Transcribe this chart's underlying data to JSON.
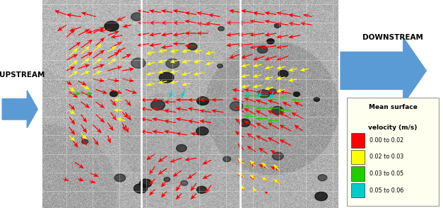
{
  "upstream_label": "UPSTREAM",
  "downstream_label": "DOWNSTREAM",
  "legend_items": [
    {
      "label": "0.00 to 0.02",
      "color": "#ff0000"
    },
    {
      "label": "0.02 to 0.03",
      "color": "#ffff00"
    },
    {
      "label": "0.03 to 0.05",
      "color": "#22cc00"
    },
    {
      "label": "0.05 to 0.06",
      "color": "#00cccc"
    }
  ],
  "legend_bg": "#fffff0",
  "arrow_color": "#5b9bd5",
  "fig_width": 6.27,
  "fig_height": 2.94,
  "dpi": 100,
  "panel_dividers": [
    0.333,
    0.667
  ],
  "red_arrows": [
    [
      0.08,
      0.93,
      -0.04,
      0.02
    ],
    [
      0.13,
      0.92,
      -0.05,
      0.01
    ],
    [
      0.18,
      0.92,
      -0.05,
      0.02
    ],
    [
      0.08,
      0.88,
      -0.03,
      -0.03
    ],
    [
      0.13,
      0.87,
      -0.04,
      -0.02
    ],
    [
      0.19,
      0.86,
      -0.04,
      -0.02
    ],
    [
      0.23,
      0.86,
      -0.04,
      -0.01
    ],
    [
      0.08,
      0.82,
      0.03,
      0.04
    ],
    [
      0.12,
      0.83,
      0.04,
      0.03
    ],
    [
      0.17,
      0.84,
      0.04,
      0.03
    ],
    [
      0.22,
      0.83,
      0.04,
      0.02
    ],
    [
      0.27,
      0.83,
      -0.04,
      -0.01
    ],
    [
      0.09,
      0.76,
      0.04,
      0.04
    ],
    [
      0.13,
      0.77,
      0.04,
      0.04
    ],
    [
      0.18,
      0.78,
      0.03,
      0.04
    ],
    [
      0.23,
      0.77,
      0.04,
      0.03
    ],
    [
      0.28,
      0.77,
      -0.03,
      -0.02
    ],
    [
      0.08,
      0.71,
      0.04,
      0.03
    ],
    [
      0.13,
      0.72,
      0.04,
      0.03
    ],
    [
      0.17,
      0.72,
      0.04,
      0.04
    ],
    [
      0.22,
      0.72,
      0.04,
      0.03
    ],
    [
      0.27,
      0.72,
      0.03,
      0.02
    ],
    [
      0.08,
      0.66,
      0.03,
      0.02
    ],
    [
      0.12,
      0.67,
      0.04,
      0.02
    ],
    [
      0.17,
      0.67,
      0.04,
      0.02
    ],
    [
      0.22,
      0.66,
      0.05,
      0.02
    ],
    [
      0.27,
      0.66,
      0.04,
      0.01
    ],
    [
      0.08,
      0.61,
      0.02,
      -0.02
    ],
    [
      0.12,
      0.61,
      0.03,
      -0.02
    ],
    [
      0.17,
      0.62,
      0.04,
      -0.01
    ],
    [
      0.22,
      0.62,
      0.04,
      -0.01
    ],
    [
      0.27,
      0.62,
      0.04,
      -0.01
    ],
    [
      0.09,
      0.56,
      0.03,
      -0.03
    ],
    [
      0.13,
      0.56,
      0.04,
      -0.03
    ],
    [
      0.18,
      0.57,
      0.04,
      -0.02
    ],
    [
      0.23,
      0.57,
      0.04,
      -0.02
    ],
    [
      0.28,
      0.57,
      0.04,
      -0.02
    ],
    [
      0.09,
      0.5,
      0.02,
      -0.03
    ],
    [
      0.13,
      0.51,
      0.03,
      -0.03
    ],
    [
      0.18,
      0.51,
      0.03,
      -0.03
    ],
    [
      0.23,
      0.52,
      0.02,
      -0.03
    ],
    [
      0.28,
      0.52,
      0.02,
      -0.03
    ],
    [
      0.09,
      0.44,
      0.02,
      -0.04
    ],
    [
      0.13,
      0.45,
      0.02,
      -0.04
    ],
    [
      0.18,
      0.45,
      0.03,
      -0.04
    ],
    [
      0.23,
      0.46,
      0.02,
      -0.04
    ],
    [
      0.28,
      0.46,
      0.02,
      -0.04
    ],
    [
      0.09,
      0.39,
      0.02,
      -0.04
    ],
    [
      0.13,
      0.4,
      0.02,
      -0.04
    ],
    [
      0.17,
      0.4,
      0.03,
      -0.04
    ],
    [
      0.22,
      0.41,
      0.02,
      -0.04
    ],
    [
      0.27,
      0.41,
      0.01,
      -0.04
    ],
    [
      0.1,
      0.33,
      0.02,
      -0.04
    ],
    [
      0.13,
      0.34,
      0.02,
      -0.04
    ],
    [
      0.17,
      0.34,
      0.02,
      -0.04
    ],
    [
      0.22,
      0.35,
      0.01,
      -0.04
    ],
    [
      0.11,
      0.22,
      0.03,
      -0.03
    ],
    [
      0.16,
      0.17,
      0.03,
      -0.02
    ],
    [
      0.07,
      0.14,
      0.02,
      -0.01
    ],
    [
      0.12,
      0.14,
      0.02,
      -0.01
    ],
    [
      0.16,
      0.13,
      0.02,
      -0.01
    ],
    [
      0.28,
      0.92,
      -0.03,
      -0.02
    ],
    [
      0.3,
      0.88,
      -0.03,
      -0.01
    ],
    [
      0.27,
      0.46,
      0.02,
      -0.03
    ],
    [
      0.28,
      0.4,
      0.01,
      -0.04
    ],
    [
      0.36,
      0.94,
      -0.04,
      0.01
    ],
    [
      0.4,
      0.94,
      -0.04,
      0.01
    ],
    [
      0.44,
      0.94,
      -0.04,
      0.01
    ],
    [
      0.48,
      0.94,
      -0.04,
      0.01
    ],
    [
      0.52,
      0.93,
      -0.04,
      0.01
    ],
    [
      0.56,
      0.93,
      -0.04,
      0.01
    ],
    [
      0.6,
      0.92,
      -0.04,
      0.01
    ],
    [
      0.36,
      0.89,
      -0.04,
      0.0
    ],
    [
      0.4,
      0.89,
      -0.04,
      0.0
    ],
    [
      0.44,
      0.89,
      -0.04,
      0.0
    ],
    [
      0.48,
      0.89,
      -0.04,
      0.0
    ],
    [
      0.52,
      0.89,
      -0.04,
      0.01
    ],
    [
      0.56,
      0.88,
      -0.04,
      0.01
    ],
    [
      0.6,
      0.88,
      -0.05,
      0.01
    ],
    [
      0.36,
      0.84,
      -0.04,
      -0.01
    ],
    [
      0.4,
      0.84,
      -0.04,
      -0.01
    ],
    [
      0.44,
      0.84,
      -0.04,
      -0.01
    ],
    [
      0.48,
      0.84,
      -0.04,
      -0.01
    ],
    [
      0.52,
      0.84,
      -0.04,
      0.0
    ],
    [
      0.56,
      0.84,
      -0.04,
      0.0
    ],
    [
      0.36,
      0.79,
      -0.04,
      -0.01
    ],
    [
      0.4,
      0.79,
      -0.04,
      -0.01
    ],
    [
      0.44,
      0.78,
      -0.04,
      -0.01
    ],
    [
      0.48,
      0.79,
      -0.04,
      0.0
    ],
    [
      0.52,
      0.78,
      -0.04,
      0.0
    ],
    [
      0.37,
      0.52,
      -0.04,
      0.0
    ],
    [
      0.41,
      0.52,
      -0.04,
      0.0
    ],
    [
      0.45,
      0.51,
      -0.04,
      0.0
    ],
    [
      0.49,
      0.52,
      -0.04,
      0.0
    ],
    [
      0.53,
      0.52,
      -0.04,
      0.0
    ],
    [
      0.57,
      0.52,
      -0.04,
      0.0
    ],
    [
      0.61,
      0.52,
      -0.04,
      0.0
    ],
    [
      0.37,
      0.47,
      -0.04,
      0.01
    ],
    [
      0.41,
      0.47,
      -0.04,
      0.01
    ],
    [
      0.45,
      0.46,
      -0.04,
      0.01
    ],
    [
      0.49,
      0.47,
      -0.04,
      0.01
    ],
    [
      0.53,
      0.47,
      -0.04,
      0.01
    ],
    [
      0.57,
      0.46,
      -0.04,
      0.01
    ],
    [
      0.61,
      0.46,
      -0.04,
      0.01
    ],
    [
      0.37,
      0.42,
      -0.04,
      0.01
    ],
    [
      0.41,
      0.42,
      -0.04,
      0.01
    ],
    [
      0.45,
      0.41,
      -0.04,
      0.01
    ],
    [
      0.49,
      0.42,
      -0.04,
      0.01
    ],
    [
      0.53,
      0.41,
      -0.04,
      0.01
    ],
    [
      0.57,
      0.41,
      -0.04,
      0.01
    ],
    [
      0.37,
      0.36,
      -0.04,
      0.01
    ],
    [
      0.41,
      0.36,
      -0.04,
      0.01
    ],
    [
      0.45,
      0.36,
      -0.04,
      0.01
    ],
    [
      0.49,
      0.35,
      -0.04,
      0.01
    ],
    [
      0.53,
      0.35,
      -0.03,
      0.01
    ],
    [
      0.38,
      0.26,
      -0.03,
      -0.03
    ],
    [
      0.42,
      0.25,
      -0.03,
      -0.03
    ],
    [
      0.47,
      0.24,
      -0.04,
      -0.02
    ],
    [
      0.52,
      0.24,
      -0.04,
      -0.01
    ],
    [
      0.57,
      0.23,
      -0.03,
      -0.02
    ],
    [
      0.38,
      0.2,
      -0.02,
      -0.04
    ],
    [
      0.42,
      0.19,
      -0.03,
      -0.03
    ],
    [
      0.47,
      0.18,
      -0.03,
      -0.03
    ],
    [
      0.52,
      0.17,
      -0.03,
      -0.03
    ],
    [
      0.57,
      0.16,
      -0.03,
      -0.02
    ],
    [
      0.38,
      0.14,
      -0.02,
      -0.03
    ],
    [
      0.42,
      0.13,
      -0.02,
      -0.03
    ],
    [
      0.47,
      0.12,
      -0.02,
      -0.04
    ],
    [
      0.52,
      0.12,
      -0.02,
      -0.04
    ],
    [
      0.57,
      0.11,
      -0.02,
      -0.04
    ],
    [
      0.38,
      0.09,
      -0.02,
      -0.03
    ],
    [
      0.42,
      0.08,
      -0.02,
      -0.03
    ],
    [
      0.47,
      0.07,
      -0.02,
      -0.03
    ],
    [
      0.52,
      0.07,
      -0.02,
      -0.03
    ],
    [
      0.67,
      0.94,
      -0.04,
      0.01
    ],
    [
      0.71,
      0.94,
      -0.04,
      0.01
    ],
    [
      0.75,
      0.93,
      -0.04,
      0.01
    ],
    [
      0.79,
      0.93,
      -0.04,
      0.01
    ],
    [
      0.83,
      0.93,
      -0.04,
      0.01
    ],
    [
      0.87,
      0.92,
      -0.04,
      0.01
    ],
    [
      0.91,
      0.92,
      -0.03,
      0.01
    ],
    [
      0.67,
      0.89,
      -0.05,
      0.0
    ],
    [
      0.71,
      0.89,
      -0.05,
      0.0
    ],
    [
      0.75,
      0.89,
      -0.05,
      0.01
    ],
    [
      0.79,
      0.89,
      -0.04,
      0.01
    ],
    [
      0.83,
      0.88,
      -0.04,
      0.01
    ],
    [
      0.87,
      0.88,
      -0.04,
      0.01
    ],
    [
      0.91,
      0.88,
      -0.04,
      0.01
    ],
    [
      0.67,
      0.84,
      -0.05,
      -0.01
    ],
    [
      0.71,
      0.84,
      -0.05,
      -0.01
    ],
    [
      0.75,
      0.84,
      -0.05,
      -0.01
    ],
    [
      0.79,
      0.84,
      -0.04,
      -0.01
    ],
    [
      0.83,
      0.83,
      -0.04,
      -0.01
    ],
    [
      0.87,
      0.83,
      -0.04,
      -0.01
    ],
    [
      0.67,
      0.79,
      -0.05,
      -0.01
    ],
    [
      0.71,
      0.79,
      -0.05,
      -0.01
    ],
    [
      0.75,
      0.78,
      -0.05,
      -0.01
    ],
    [
      0.79,
      0.78,
      -0.05,
      -0.01
    ],
    [
      0.83,
      0.78,
      -0.04,
      -0.01
    ],
    [
      0.67,
      0.74,
      -0.04,
      -0.02
    ],
    [
      0.71,
      0.74,
      -0.04,
      -0.02
    ],
    [
      0.75,
      0.73,
      -0.04,
      -0.02
    ],
    [
      0.79,
      0.73,
      -0.04,
      -0.02
    ],
    [
      0.83,
      0.73,
      -0.04,
      -0.02
    ],
    [
      0.68,
      0.56,
      -0.04,
      0.01
    ],
    [
      0.72,
      0.56,
      -0.04,
      0.01
    ],
    [
      0.76,
      0.55,
      -0.04,
      0.01
    ],
    [
      0.8,
      0.55,
      -0.04,
      0.01
    ],
    [
      0.84,
      0.55,
      -0.04,
      0.01
    ],
    [
      0.68,
      0.51,
      -0.04,
      0.02
    ],
    [
      0.72,
      0.51,
      -0.04,
      0.02
    ],
    [
      0.76,
      0.5,
      -0.04,
      0.02
    ],
    [
      0.8,
      0.5,
      -0.04,
      0.02
    ],
    [
      0.84,
      0.49,
      -0.03,
      0.02
    ],
    [
      0.88,
      0.49,
      -0.03,
      0.02
    ],
    [
      0.68,
      0.46,
      -0.03,
      0.03
    ],
    [
      0.72,
      0.45,
      -0.04,
      0.03
    ],
    [
      0.76,
      0.44,
      -0.04,
      0.03
    ],
    [
      0.8,
      0.44,
      -0.04,
      0.03
    ],
    [
      0.84,
      0.43,
      -0.04,
      0.03
    ],
    [
      0.88,
      0.43,
      -0.04,
      0.03
    ],
    [
      0.68,
      0.4,
      -0.03,
      0.03
    ],
    [
      0.72,
      0.39,
      -0.04,
      0.03
    ],
    [
      0.76,
      0.38,
      -0.04,
      0.03
    ],
    [
      0.8,
      0.38,
      -0.04,
      0.03
    ],
    [
      0.84,
      0.37,
      -0.04,
      0.03
    ],
    [
      0.88,
      0.37,
      -0.03,
      0.03
    ],
    [
      0.68,
      0.34,
      -0.03,
      0.03
    ],
    [
      0.72,
      0.33,
      -0.03,
      0.03
    ],
    [
      0.76,
      0.32,
      -0.04,
      0.03
    ],
    [
      0.8,
      0.31,
      -0.04,
      0.03
    ],
    [
      0.84,
      0.3,
      -0.04,
      0.03
    ],
    [
      0.68,
      0.28,
      -0.02,
      0.03
    ],
    [
      0.72,
      0.27,
      -0.03,
      0.03
    ],
    [
      0.76,
      0.26,
      -0.03,
      0.03
    ],
    [
      0.8,
      0.25,
      -0.03,
      0.03
    ],
    [
      0.68,
      0.21,
      -0.02,
      0.02
    ],
    [
      0.72,
      0.2,
      -0.02,
      0.02
    ],
    [
      0.76,
      0.19,
      -0.03,
      0.02
    ],
    [
      0.8,
      0.18,
      -0.03,
      0.02
    ],
    [
      0.68,
      0.15,
      -0.02,
      0.01
    ],
    [
      0.72,
      0.14,
      -0.02,
      0.01
    ],
    [
      0.76,
      0.13,
      -0.02,
      0.02
    ],
    [
      0.8,
      0.12,
      -0.02,
      0.02
    ],
    [
      0.68,
      0.09,
      -0.01,
      0.01
    ],
    [
      0.72,
      0.08,
      -0.01,
      0.01
    ],
    [
      0.76,
      0.07,
      -0.01,
      0.01
    ]
  ],
  "yellow_arrows": [
    [
      0.09,
      0.73,
      0.03,
      0.04
    ],
    [
      0.13,
      0.74,
      0.03,
      0.04
    ],
    [
      0.17,
      0.75,
      0.03,
      0.04
    ],
    [
      0.22,
      0.75,
      0.03,
      0.03
    ],
    [
      0.09,
      0.68,
      0.03,
      0.03
    ],
    [
      0.13,
      0.69,
      0.03,
      0.03
    ],
    [
      0.17,
      0.69,
      0.03,
      0.03
    ],
    [
      0.22,
      0.69,
      0.03,
      0.03
    ],
    [
      0.09,
      0.63,
      0.03,
      0.03
    ],
    [
      0.13,
      0.64,
      0.03,
      0.02
    ],
    [
      0.17,
      0.64,
      0.03,
      0.02
    ],
    [
      0.09,
      0.58,
      0.02,
      -0.02
    ],
    [
      0.13,
      0.59,
      0.03,
      -0.02
    ],
    [
      0.09,
      0.47,
      0.02,
      -0.02
    ],
    [
      0.27,
      0.52,
      -0.03,
      0.0
    ],
    [
      0.27,
      0.47,
      -0.03,
      0.0
    ],
    [
      0.28,
      0.42,
      -0.03,
      0.01
    ],
    [
      0.09,
      0.35,
      0.02,
      -0.03
    ],
    [
      0.13,
      0.36,
      0.02,
      -0.03
    ],
    [
      0.38,
      0.75,
      -0.03,
      -0.01
    ],
    [
      0.42,
      0.76,
      -0.03,
      -0.01
    ],
    [
      0.46,
      0.76,
      -0.03,
      -0.01
    ],
    [
      0.5,
      0.76,
      -0.03,
      -0.01
    ],
    [
      0.54,
      0.76,
      -0.03,
      -0.01
    ],
    [
      0.58,
      0.75,
      -0.03,
      -0.01
    ],
    [
      0.38,
      0.7,
      -0.03,
      -0.01
    ],
    [
      0.42,
      0.71,
      -0.03,
      -0.01
    ],
    [
      0.46,
      0.71,
      -0.03,
      -0.01
    ],
    [
      0.5,
      0.71,
      -0.03,
      -0.01
    ],
    [
      0.54,
      0.71,
      -0.03,
      -0.01
    ],
    [
      0.58,
      0.7,
      -0.03,
      -0.01
    ],
    [
      0.38,
      0.65,
      -0.03,
      -0.01
    ],
    [
      0.42,
      0.66,
      -0.03,
      -0.01
    ],
    [
      0.46,
      0.66,
      -0.03,
      -0.01
    ],
    [
      0.5,
      0.65,
      -0.03,
      -0.01
    ],
    [
      0.54,
      0.65,
      -0.03,
      -0.01
    ],
    [
      0.38,
      0.6,
      -0.03,
      -0.01
    ],
    [
      0.42,
      0.61,
      -0.03,
      -0.01
    ],
    [
      0.46,
      0.61,
      -0.03,
      -0.01
    ],
    [
      0.5,
      0.6,
      -0.03,
      -0.01
    ],
    [
      0.7,
      0.69,
      -0.03,
      -0.01
    ],
    [
      0.74,
      0.69,
      -0.03,
      -0.01
    ],
    [
      0.78,
      0.68,
      -0.03,
      -0.01
    ],
    [
      0.82,
      0.68,
      -0.03,
      -0.01
    ],
    [
      0.86,
      0.67,
      -0.03,
      -0.01
    ],
    [
      0.9,
      0.67,
      -0.03,
      -0.01
    ],
    [
      0.7,
      0.64,
      -0.03,
      -0.01
    ],
    [
      0.74,
      0.64,
      -0.03,
      -0.01
    ],
    [
      0.78,
      0.63,
      -0.03,
      -0.01
    ],
    [
      0.82,
      0.63,
      -0.03,
      -0.01
    ],
    [
      0.86,
      0.62,
      -0.03,
      -0.01
    ],
    [
      0.7,
      0.59,
      -0.03,
      -0.01
    ],
    [
      0.74,
      0.59,
      -0.03,
      -0.01
    ],
    [
      0.78,
      0.58,
      -0.03,
      -0.01
    ],
    [
      0.82,
      0.57,
      -0.03,
      -0.01
    ],
    [
      0.68,
      0.21,
      -0.02,
      0.03
    ],
    [
      0.72,
      0.2,
      -0.02,
      0.03
    ],
    [
      0.76,
      0.19,
      -0.02,
      0.03
    ],
    [
      0.8,
      0.18,
      -0.02,
      0.03
    ],
    [
      0.68,
      0.15,
      -0.02,
      0.02
    ],
    [
      0.72,
      0.14,
      -0.02,
      0.02
    ],
    [
      0.76,
      0.13,
      -0.02,
      0.02
    ],
    [
      0.8,
      0.12,
      -0.02,
      0.02
    ],
    [
      0.68,
      0.09,
      -0.01,
      0.02
    ],
    [
      0.72,
      0.08,
      -0.01,
      0.02
    ]
  ],
  "green_arrows": [
    [
      0.09,
      0.55,
      0.04,
      0.0
    ],
    [
      0.13,
      0.55,
      0.04,
      0.0
    ],
    [
      0.72,
      0.54,
      -0.04,
      0.0
    ],
    [
      0.76,
      0.54,
      -0.04,
      0.0
    ],
    [
      0.8,
      0.53,
      -0.04,
      0.0
    ],
    [
      0.84,
      0.53,
      -0.04,
      0.0
    ],
    [
      0.88,
      0.52,
      -0.04,
      0.0
    ],
    [
      0.72,
      0.49,
      -0.04,
      0.0
    ],
    [
      0.76,
      0.48,
      -0.04,
      0.0
    ],
    [
      0.8,
      0.48,
      -0.04,
      0.0
    ],
    [
      0.84,
      0.47,
      -0.04,
      0.0
    ],
    [
      0.72,
      0.44,
      -0.04,
      0.0
    ],
    [
      0.76,
      0.43,
      -0.04,
      0.0
    ],
    [
      0.8,
      0.42,
      -0.04,
      0.0
    ]
  ],
  "cyan_arrows": [
    [
      0.44,
      0.57,
      -0.01,
      -0.04
    ],
    [
      0.48,
      0.57,
      -0.01,
      -0.04
    ],
    [
      0.7,
      0.57,
      -0.01,
      -0.04
    ],
    [
      0.74,
      0.57,
      -0.01,
      -0.04
    ],
    [
      0.78,
      0.56,
      -0.01,
      -0.04
    ]
  ]
}
